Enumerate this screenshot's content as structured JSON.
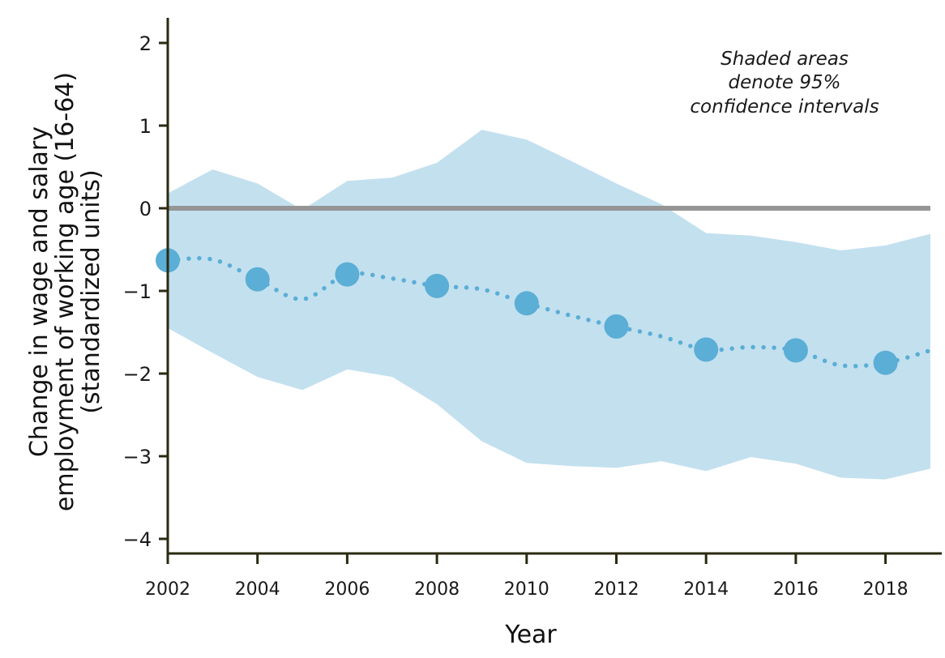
{
  "chart_data": {
    "type": "line",
    "xlabel": "Year",
    "ylabel": [
      "Change in wage and salary",
      "employment of working age (16-64)",
      "(standardized units)"
    ],
    "annotation": [
      "Shaded areas",
      "denote 95%",
      "confidence intervals"
    ],
    "xlim": [
      2002,
      2019
    ],
    "ylim": [
      -4.15,
      2.3
    ],
    "x_ticks": [
      2002,
      2004,
      2006,
      2008,
      2010,
      2012,
      2014,
      2016,
      2018
    ],
    "x_tick_labels": [
      "2002",
      "2004",
      "2006",
      "2008",
      "2010",
      "2012",
      "2014",
      "2016",
      "2018"
    ],
    "y_ticks": [
      2,
      1,
      0,
      -1,
      -2,
      -3,
      -4
    ],
    "y_tick_labels": [
      "2",
      "1",
      "0",
      "−1",
      "−2",
      "−3",
      "−4"
    ],
    "reference_line": 0,
    "grid": false,
    "series": [
      {
        "style": "dotted line with markers on even years",
        "x": [
          2002,
          2003,
          2004,
          2005,
          2006,
          2007,
          2008,
          2009,
          2010,
          2011,
          2012,
          2013,
          2014,
          2015,
          2016,
          2017,
          2018,
          2019
        ],
        "y": [
          -0.63,
          -0.62,
          -0.86,
          -1.1,
          -0.8,
          -0.85,
          -0.94,
          -0.98,
          -1.15,
          -1.3,
          -1.43,
          -1.55,
          -1.71,
          -1.68,
          -1.72,
          -1.9,
          -1.87,
          -1.72
        ]
      }
    ],
    "confidence_band": {
      "x": [
        2002,
        2003,
        2004,
        2005,
        2006,
        2007,
        2008,
        2009,
        2010,
        2011,
        2012,
        2013,
        2014,
        2015,
        2016,
        2017,
        2018,
        2019
      ],
      "upper": [
        0.18,
        0.47,
        0.3,
        -0.02,
        0.33,
        0.37,
        0.55,
        0.95,
        0.83,
        0.57,
        0.3,
        0.05,
        -0.3,
        -0.33,
        -0.41,
        -0.51,
        -0.45,
        -0.31
      ],
      "lower": [
        -1.45,
        -1.75,
        -2.04,
        -2.2,
        -1.95,
        -2.04,
        -2.37,
        -2.82,
        -3.08,
        -3.12,
        -3.14,
        -3.06,
        -3.18,
        -3.01,
        -3.09,
        -3.26,
        -3.28,
        -3.15
      ]
    },
    "colors": {
      "line": "#5baed5",
      "marker": "#5baed5",
      "band": "#c3e0ef",
      "zero_line": "#959595",
      "axis": "#2b2a10"
    }
  }
}
